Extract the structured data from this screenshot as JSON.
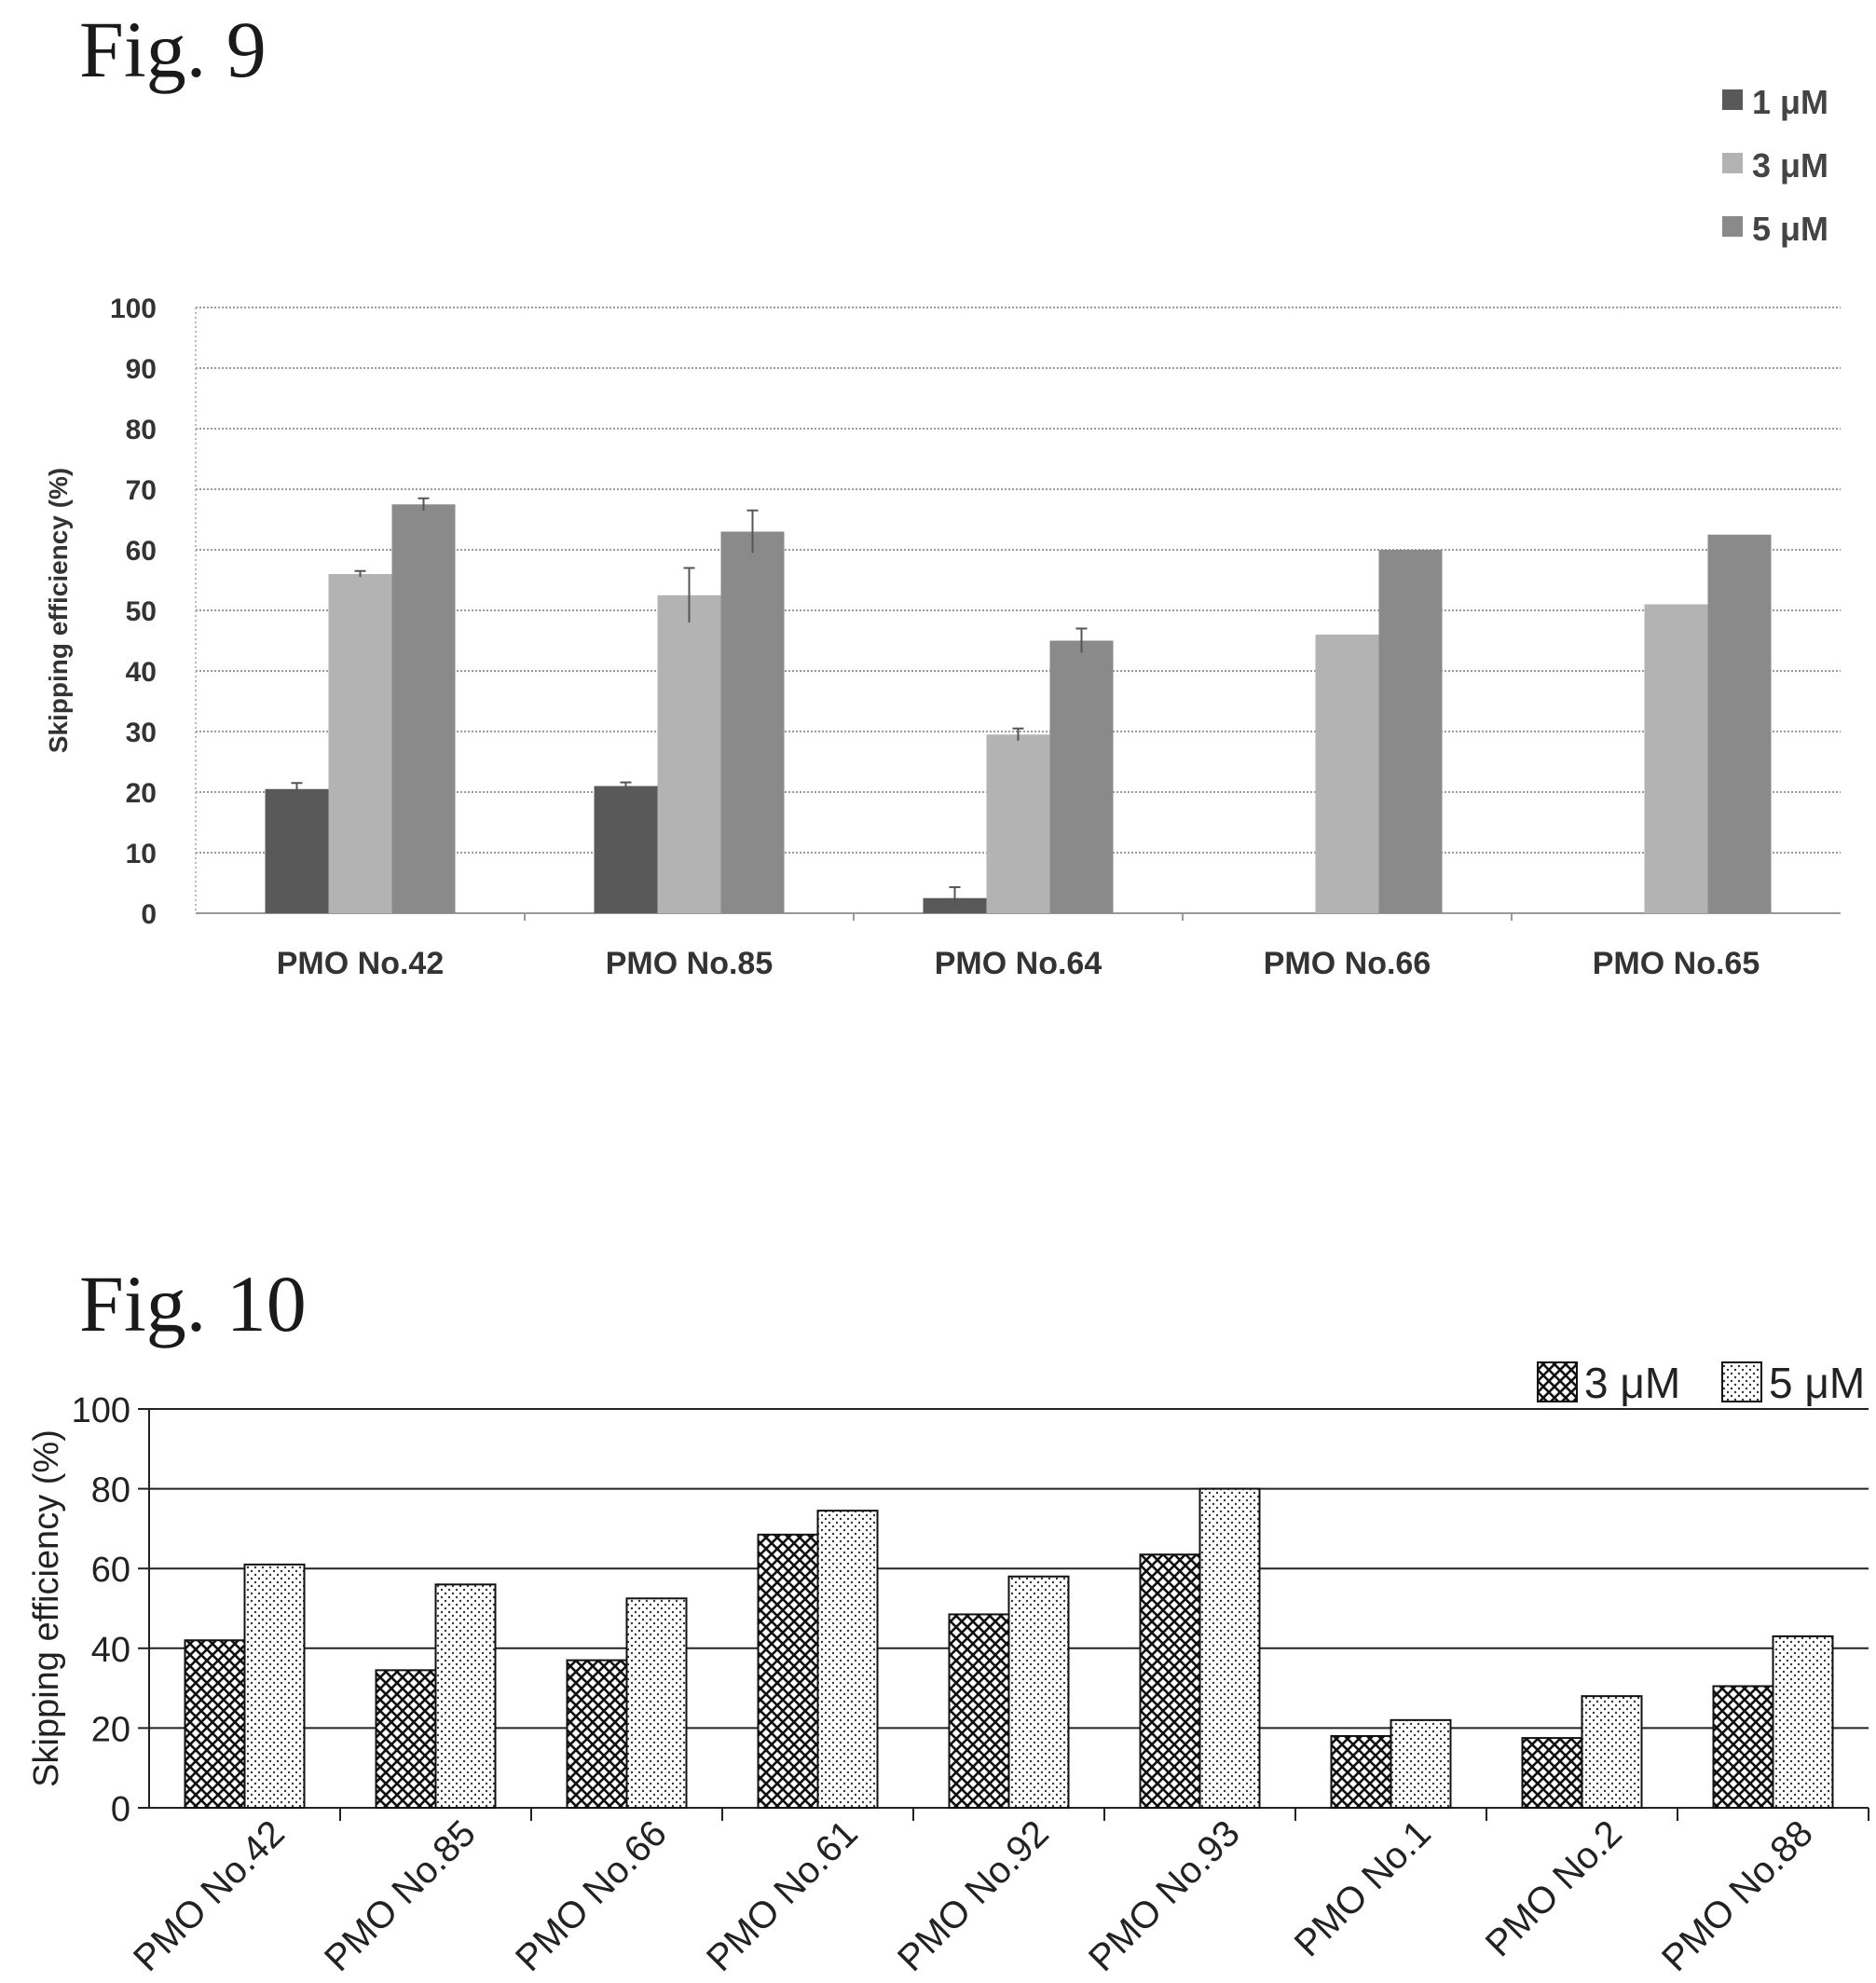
{
  "figures": [
    {
      "label": "Fig. 9"
    },
    {
      "label": "Fig. 10"
    }
  ],
  "chart_data": [
    {
      "type": "bar",
      "ylabel": "Skipping efficiency (%)",
      "xlabel": "",
      "ylim": [
        0,
        100
      ],
      "yticks": [
        "0",
        "10",
        "20",
        "30",
        "40",
        "50",
        "60",
        "70",
        "80",
        "90",
        "100"
      ],
      "grid": true,
      "legend_placement": "top-right",
      "categories": [
        "PMO No.42",
        "PMO No.85",
        "PMO No.64",
        "PMO No.66",
        "PMO No.65"
      ],
      "series": [
        {
          "name": "1 μM",
          "color": "#595959",
          "values": [
            20.5,
            21,
            2.5,
            null,
            null
          ],
          "errors": [
            1,
            0.6,
            1.8,
            null,
            null
          ]
        },
        {
          "name": "3 μM",
          "color": "#b3b3b3",
          "values": [
            56,
            52.5,
            29.5,
            46,
            51
          ],
          "errors": [
            0.5,
            4.5,
            1,
            null,
            null
          ]
        },
        {
          "name": "5 μM",
          "color": "#8a8a8a",
          "values": [
            67.5,
            63,
            45,
            60,
            62.5
          ],
          "errors": [
            1,
            3.5,
            2,
            null,
            null
          ]
        }
      ]
    },
    {
      "type": "bar",
      "ylabel": "Skipping efficiency (%)",
      "xlabel": "",
      "ylim": [
        0,
        100
      ],
      "yticks": [
        "0",
        "20",
        "40",
        "60",
        "80",
        "100"
      ],
      "grid": true,
      "legend_placement": "top-right",
      "categories": [
        "PMO No.42",
        "PMO No.85",
        "PMO No.66",
        "PMO No.61",
        "PMO No.92",
        "PMO No.93",
        "PMO No.1",
        "PMO No.2",
        "PMO No.88"
      ],
      "series": [
        {
          "name": "3 μM",
          "pattern": "crosshatch",
          "values": [
            42,
            34.5,
            37,
            68.5,
            48.5,
            63.5,
            18,
            17.5,
            30.5
          ]
        },
        {
          "name": "5 μM",
          "pattern": "dots",
          "values": [
            61,
            56,
            52.5,
            74.5,
            58,
            80,
            22,
            28,
            43
          ]
        }
      ]
    }
  ]
}
